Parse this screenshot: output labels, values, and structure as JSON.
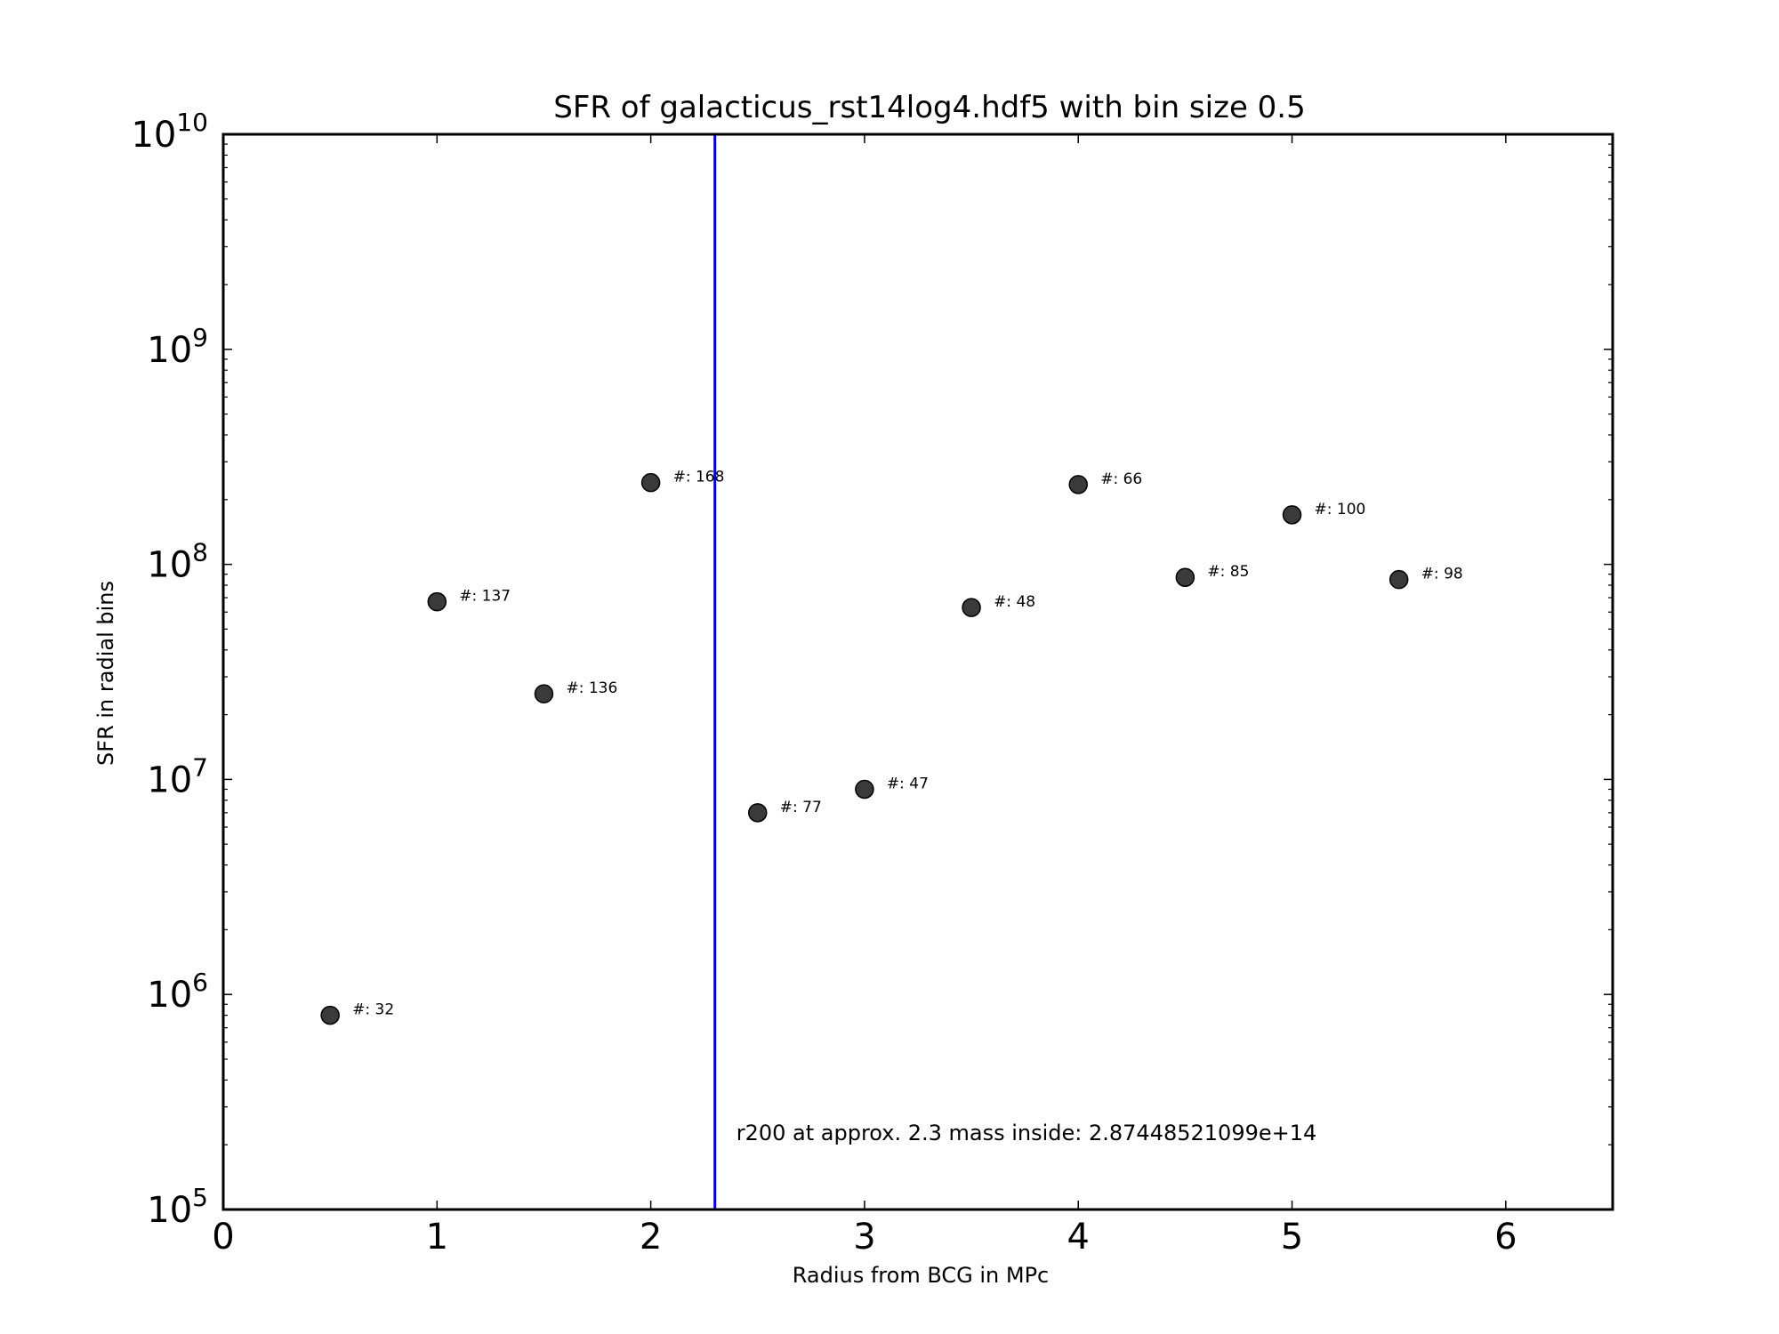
{
  "chart_data": {
    "type": "scatter",
    "title": "SFR of galacticus_rst14log4.hdf5 with bin size 0.5",
    "xlabel": "Radius from BCG in MPc",
    "ylabel": "SFR in radial bins",
    "xlim": [
      0,
      6.5
    ],
    "ylim": [
      100000,
      10000000000
    ],
    "yscale": "log",
    "x_ticks": [
      "0",
      "1",
      "2",
      "3",
      "4",
      "5",
      "6"
    ],
    "y_ticks": [
      {
        "base": "10",
        "exp": "5"
      },
      {
        "base": "10",
        "exp": "6"
      },
      {
        "base": "10",
        "exp": "7"
      },
      {
        "base": "10",
        "exp": "8"
      },
      {
        "base": "10",
        "exp": "9"
      },
      {
        "base": "10",
        "exp": "10"
      }
    ],
    "grid": false,
    "marker_color": "#3a3a3a",
    "points": [
      {
        "x": 0.5,
        "y": 800000,
        "label": "#: 32"
      },
      {
        "x": 1.0,
        "y": 67000000,
        "label": "#: 137"
      },
      {
        "x": 1.5,
        "y": 25000000,
        "label": "#: 136"
      },
      {
        "x": 2.0,
        "y": 240000000,
        "label": "#: 168"
      },
      {
        "x": 2.5,
        "y": 7000000,
        "label": "#: 77"
      },
      {
        "x": 3.0,
        "y": 9000000,
        "label": "#: 47"
      },
      {
        "x": 3.5,
        "y": 63000000,
        "label": "#: 48"
      },
      {
        "x": 4.0,
        "y": 235000000,
        "label": "#: 66"
      },
      {
        "x": 4.5,
        "y": 87000000,
        "label": "#: 85"
      },
      {
        "x": 5.0,
        "y": 170000000,
        "label": "#: 100"
      },
      {
        "x": 5.5,
        "y": 85000000,
        "label": "#: 98"
      }
    ],
    "vline": {
      "x": 2.3,
      "color": "#0000cc"
    },
    "annotation": {
      "x": 2.4,
      "y": 210000,
      "text": "r200 at approx. 2.3 mass inside: 2.87448521099e+14"
    }
  }
}
